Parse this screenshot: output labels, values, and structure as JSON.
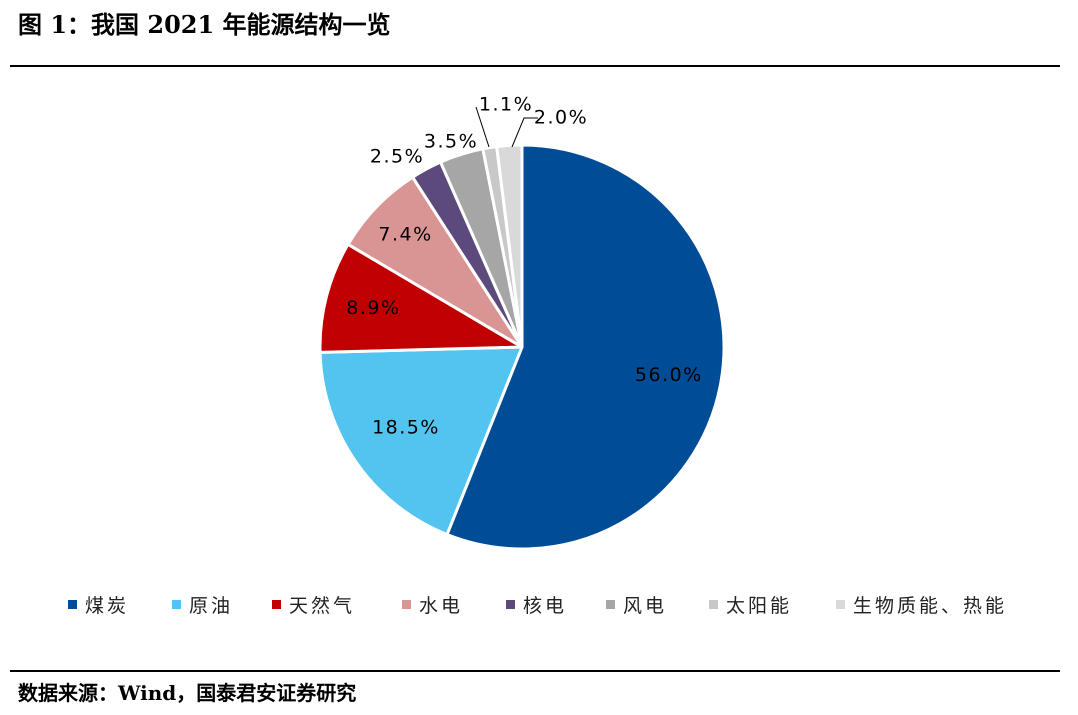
{
  "title": "图 1：我国 2021 年能源结构一览",
  "source": "数据来源：Wind，国泰君安证券研究",
  "chart_data": {
    "type": "pie",
    "unit": "%",
    "categories": [
      "煤炭",
      "原油",
      "天然气",
      "水电",
      "核电",
      "风电",
      "太阳能",
      "生物质能、热能"
    ],
    "values": [
      56.0,
      18.5,
      8.9,
      7.4,
      2.5,
      3.5,
      1.1,
      2.0
    ],
    "data_labels": [
      "56.0%",
      "18.5%",
      "8.9%",
      "7.4%",
      "2.5%",
      "3.5%",
      "1.1%",
      "2.0%"
    ],
    "colors": [
      "#004C97",
      "#53C4F0",
      "#C00000",
      "#D99594",
      "#5C4A7D",
      "#A6A6A6",
      "#C8C8C8",
      "#D9D9D9"
    ],
    "legend_position": "bottom",
    "start_angle": "12 o'clock",
    "direction": "clockwise"
  }
}
